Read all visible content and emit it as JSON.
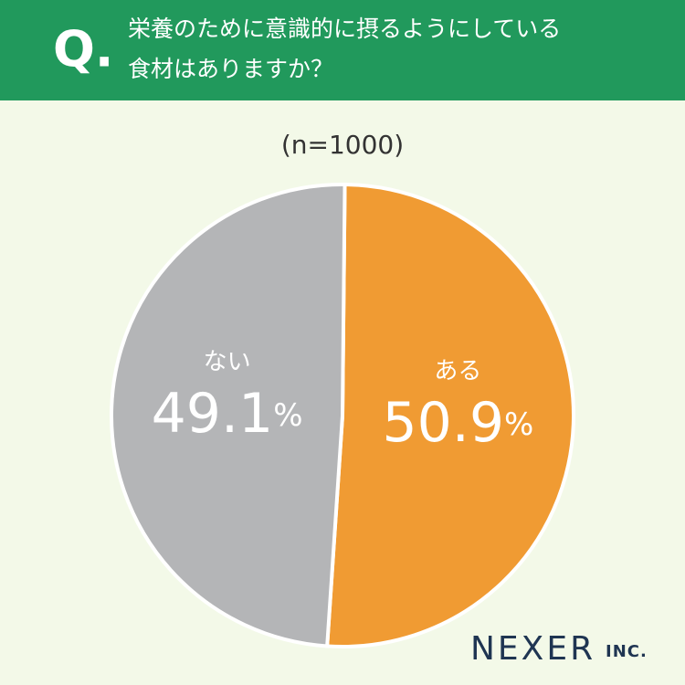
{
  "chart_data": {
    "type": "pie",
    "question_mark": "Q.",
    "title_lines": [
      "栄養のために意識的に摂るようにしている",
      "食材はありますか？"
    ],
    "subtitle": "(n=1000)",
    "categories": [
      "ある",
      "ない"
    ],
    "values": [
      50.9,
      49.1
    ],
    "unit": "%",
    "colors": [
      "#f09b33",
      "#b4b5b7"
    ],
    "logo": "NEXER",
    "logo_suffix": "INC."
  }
}
